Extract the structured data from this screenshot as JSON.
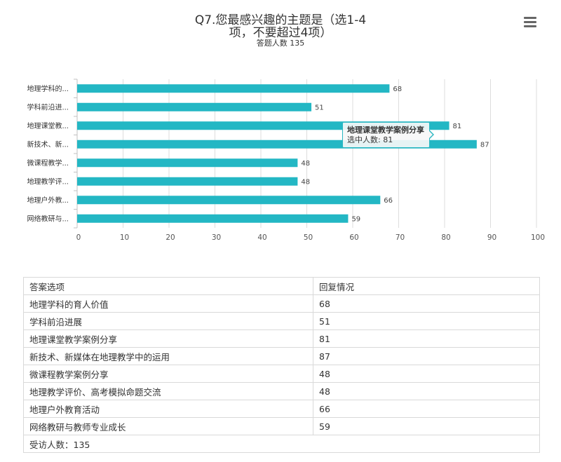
{
  "title": {
    "line1": "Q7.您最感兴趣的主题是（选1-4",
    "line2": "项，不要超过4项）",
    "subtitle": "答题人数 135"
  },
  "menu_icon": "menu-icon",
  "colors": {
    "bar": "#23b7c4",
    "grid": "#dddddd"
  },
  "tooltip": {
    "title": "地理课堂教学案例分享",
    "text": "选中人数: 81"
  },
  "chart_data": {
    "type": "bar",
    "orientation": "horizontal",
    "title": "Q7.您最感兴趣的主题是（选1-4项，不要超过4项）",
    "subtitle": "答题人数 135",
    "categories": [
      "地理学科的...",
      "学科前沿进...",
      "地理课堂教...",
      "新技术、新...",
      "微课程教学...",
      "地理教学评...",
      "地理户外教...",
      "网络教研与..."
    ],
    "values": [
      68,
      51,
      81,
      87,
      48,
      48,
      66,
      59
    ],
    "xlim": [
      0,
      100
    ],
    "ticks": [
      "0",
      "10",
      "20",
      "30",
      "40",
      "50",
      "60",
      "70",
      "80",
      "90",
      "100"
    ],
    "grid": true,
    "data_labels": true
  },
  "table": {
    "headers": [
      "答案选项",
      "回复情况"
    ],
    "rows": [
      [
        "地理学科的育人价值",
        "68"
      ],
      [
        "学科前沿进展",
        "51"
      ],
      [
        "地理课堂教学案例分享",
        "81"
      ],
      [
        "新技术、新媒体在地理教学中的运用",
        "87"
      ],
      [
        "微课程教学案例分享",
        "48"
      ],
      [
        "地理教学评价、高考模拟命题交流",
        "48"
      ],
      [
        "地理户外教育活动",
        "66"
      ],
      [
        "网络教研与教师专业成长",
        "59"
      ]
    ],
    "footer": "受访人数：135"
  }
}
